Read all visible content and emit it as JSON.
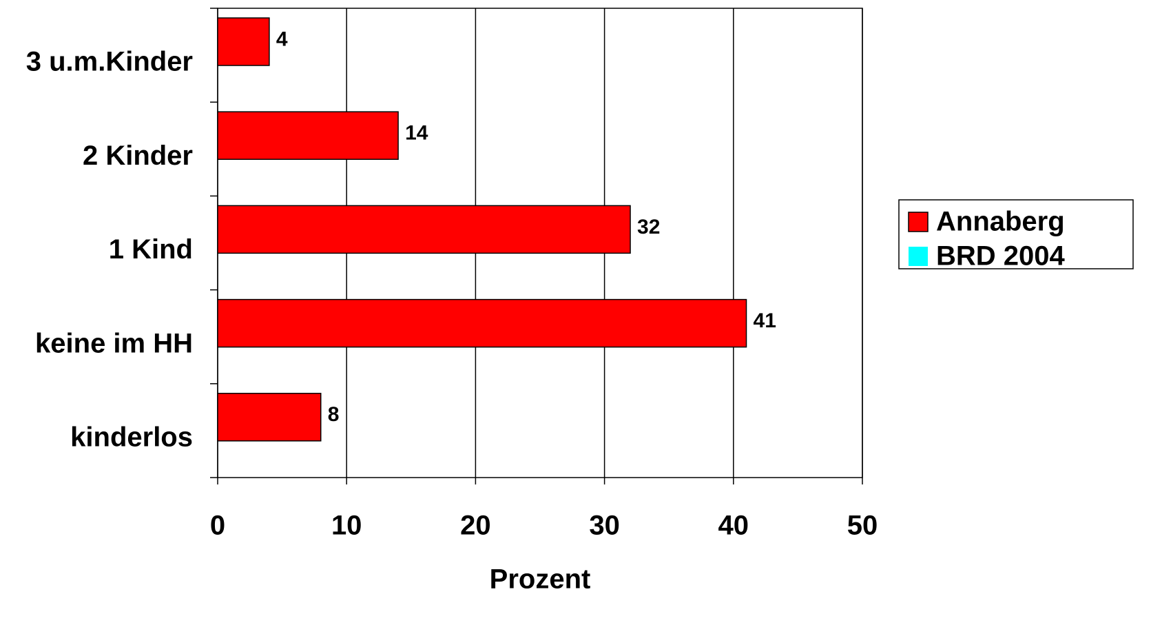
{
  "chart_data": {
    "type": "hbar",
    "xlabel": "Prozent",
    "categories": [
      "3 u.m.Kinder",
      "2 Kinder",
      "1 Kind",
      "keine im HH",
      "kinderlos"
    ],
    "series": [
      {
        "name": "Annaberg",
        "color": "#ff0000",
        "values": [
          4,
          14,
          32,
          41,
          8
        ]
      },
      {
        "name": "BRD 2004",
        "color": "#00ffff",
        "values": [
          null,
          null,
          null,
          null,
          null
        ]
      }
    ],
    "xlim": [
      0,
      50
    ],
    "xticks": [
      0,
      10,
      20,
      30,
      40,
      50
    ],
    "grid": true,
    "legend": "right"
  }
}
